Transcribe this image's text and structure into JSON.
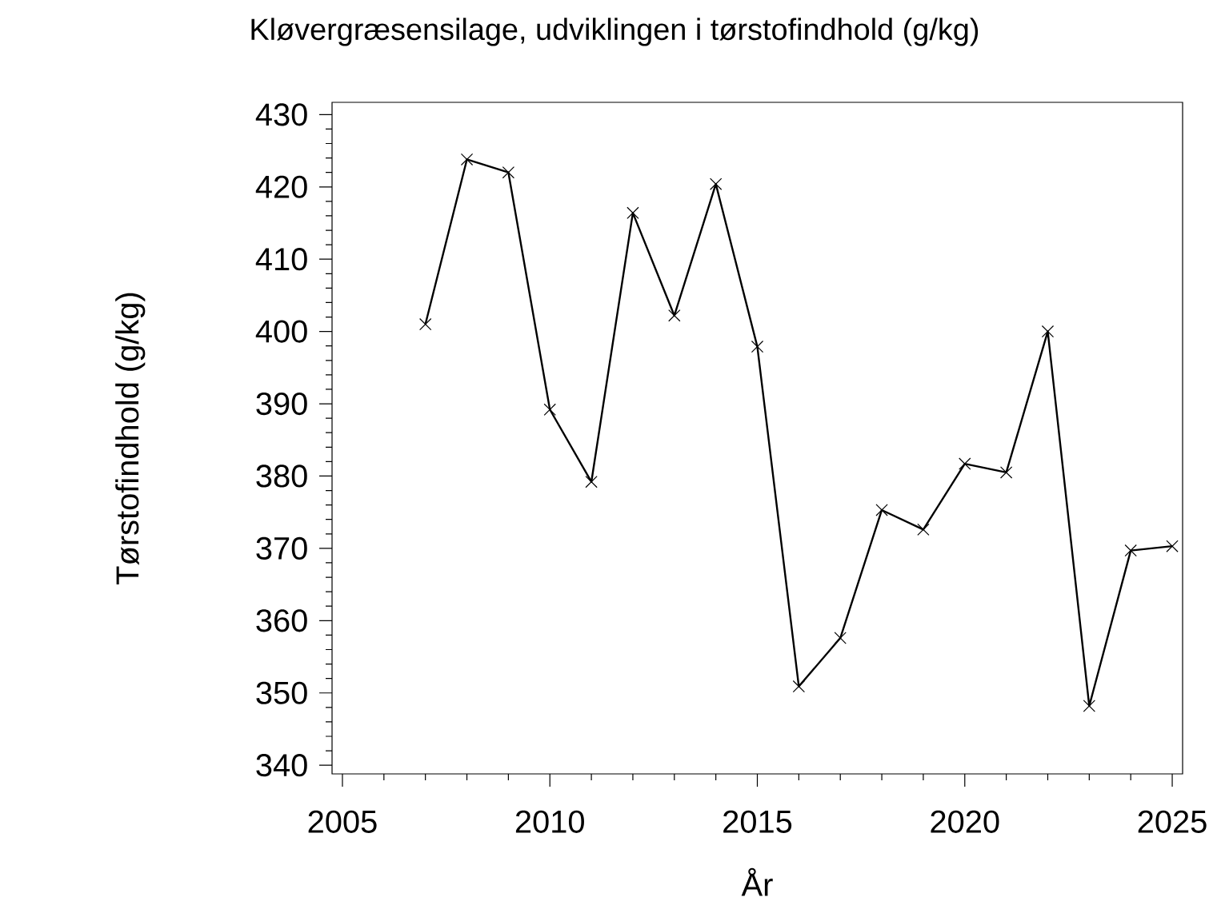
{
  "chart_data": {
    "type": "line",
    "title": "Kløvergræsensilage, udviklingen i tørstofindhold (g/kg)",
    "xlabel": "År",
    "ylabel": "Tørstofindhold (g/kg)",
    "x": [
      2007,
      2008,
      2009,
      2010,
      2011,
      2012,
      2013,
      2014,
      2015,
      2016,
      2017,
      2018,
      2019,
      2020,
      2021,
      2022,
      2023,
      2024,
      2025
    ],
    "values": [
      401.0,
      423.8,
      422.0,
      389.2,
      379.2,
      416.4,
      402.2,
      420.4,
      397.9,
      350.9,
      357.6,
      375.3,
      372.6,
      381.7,
      380.5,
      400.0,
      348.2,
      369.7,
      370.3
    ],
    "color": "#000000",
    "marker": "cross",
    "line_style": "solid",
    "xlim": [
      2004.75,
      2025.25
    ],
    "ylim": [
      338.8,
      431.7
    ],
    "xticks": [
      2005,
      2010,
      2015,
      2020,
      2025
    ],
    "yticks": [
      340,
      350,
      360,
      370,
      380,
      390,
      400,
      410,
      420,
      430
    ]
  }
}
